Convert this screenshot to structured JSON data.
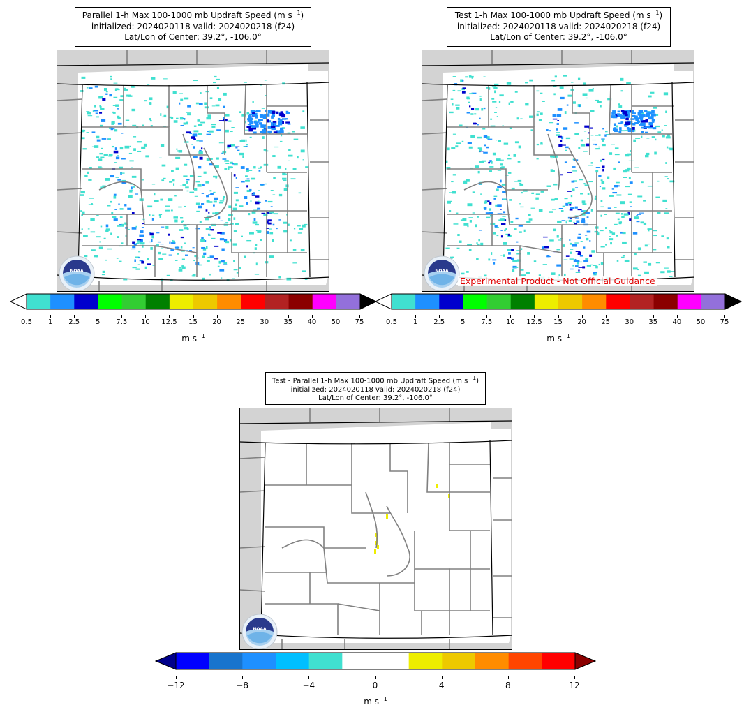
{
  "panels": [
    {
      "id": "parallel",
      "title_line1": "Parallel 1-h Max 100-1000 mb Updraft Speed (m s",
      "title_exp": "−1",
      "title_line2": "initialized: 2024020118 valid: 2024020218 (f24)",
      "title_line3": "Lat/Lon of Center: 39.2°, -106.0°",
      "units": "m s",
      "units_exp": "−1"
    },
    {
      "id": "test",
      "title_line1": "Test 1-h Max 100-1000 mb Updraft Speed (m s",
      "title_exp": "−1",
      "title_line2": "initialized: 2024020118 valid: 2024020218 (f24)",
      "title_line3": "Lat/Lon of Center: 39.2°, -106.0°",
      "units": "m s",
      "units_exp": "−1",
      "disclaimer": "Experimental Product - Not Official Guidance"
    },
    {
      "id": "difference",
      "title_line1": "Test - Parallel 1-h Max 100-1000 mb Updraft Speed (m s",
      "title_exp": "−1",
      "title_line2": "initialized: 2024020118 valid: 2024020218 (f24)",
      "title_line3": "Lat/Lon of Center: 39.2°, -106.0°",
      "units": "m s",
      "units_exp": "−1"
    }
  ],
  "colorbar_speed": {
    "ticks": [
      "0.5",
      "1",
      "2.5",
      "5",
      "7.5",
      "10",
      "12.5",
      "15",
      "20",
      "25",
      "30",
      "35",
      "40",
      "50",
      "75"
    ],
    "colors": [
      "#40e0d0",
      "#1e90ff",
      "#0000cd",
      "#00ff00",
      "#32cd32",
      "#008000",
      "#eeee00",
      "#eec900",
      "#ff8c00",
      "#ff0000",
      "#b22222",
      "#8b0000",
      "#ff00ff",
      "#9370db"
    ],
    "under_color": "#ffffff",
    "over_color": "#000000"
  },
  "colorbar_diff": {
    "ticks": [
      "−12",
      "−8",
      "−4",
      "0",
      "4",
      "8",
      "12"
    ],
    "colors": [
      "#0000ff",
      "#1874cd",
      "#1e90ff",
      "#00bfff",
      "#40e0d0",
      "#ffffff",
      "#ffffff",
      "#eeee00",
      "#eec900",
      "#ff8c00",
      "#ff4500",
      "#ff0000"
    ],
    "under_color": "#00008b",
    "over_color": "#8b0000"
  },
  "map_colors": {
    "land": "#ffffff",
    "outside_domain": "#d3d3d3",
    "county_lines": "#808080",
    "state_lines": "#000000"
  },
  "logo": {
    "label": "NOAA",
    "icon": "noaa-logo-icon"
  }
}
